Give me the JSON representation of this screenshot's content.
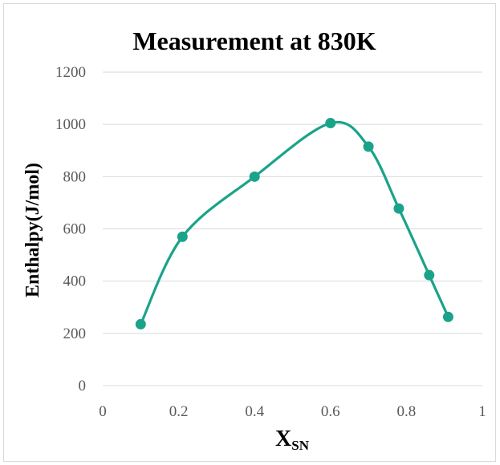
{
  "chart_data": {
    "type": "scatter",
    "title": "Measurement at 830K",
    "ylabel": "Enthalpy(J/mol)",
    "xlabel": "X",
    "xlabel_subscript": "SN",
    "xlim": [
      0,
      1
    ],
    "ylim": [
      0,
      1200
    ],
    "x_ticks": [
      0,
      0.2,
      0.4,
      0.6,
      0.8,
      1
    ],
    "x_tick_labels": [
      "0",
      "0.2",
      "0.4",
      "0.6",
      "0.8",
      "1"
    ],
    "y_ticks": [
      0,
      200,
      400,
      600,
      800,
      1000,
      1200
    ],
    "y_tick_labels": [
      "0",
      "200",
      "400",
      "600",
      "800",
      "1000",
      "1200"
    ],
    "grid": "horizontal",
    "smooth_line": true,
    "color": "#1aa38a",
    "series": [
      {
        "x": [
          0.1,
          0.21,
          0.4,
          0.6,
          0.7,
          0.78,
          0.86,
          0.91
        ],
        "y": [
          235,
          570,
          800,
          1005,
          915,
          678,
          423,
          263
        ]
      }
    ]
  }
}
